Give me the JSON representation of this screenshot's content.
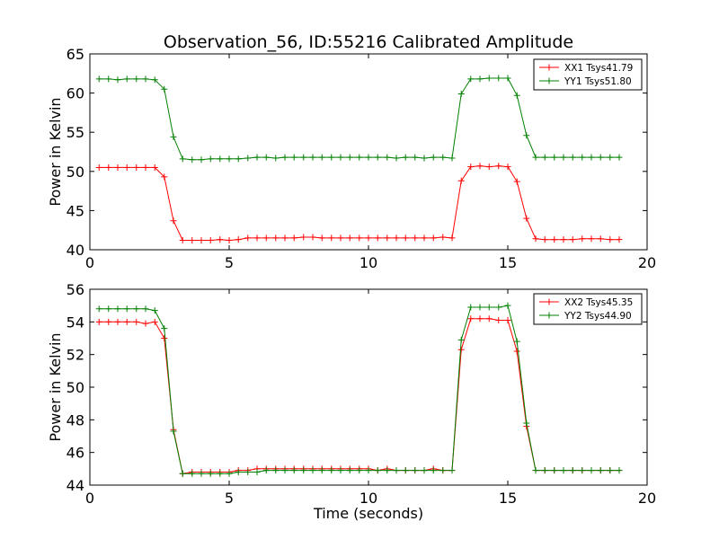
{
  "figure": {
    "title": "Observation_56, ID:55216 Calibrated Amplitude"
  },
  "chart_data": [
    {
      "type": "line",
      "title": "Observation_56, ID:55216 Calibrated Amplitude",
      "xlabel": "",
      "ylabel": "Power in Kelvin",
      "xlim": [
        0,
        20
      ],
      "ylim": [
        40,
        65
      ],
      "xticks": [
        "0",
        "5",
        "10",
        "15",
        "20"
      ],
      "yticks": [
        "40",
        "45",
        "50",
        "55",
        "60",
        "65"
      ],
      "grid": false,
      "legend_position": "top-right",
      "x": [
        0.33,
        0.67,
        1.0,
        1.33,
        1.67,
        2.0,
        2.33,
        2.67,
        3.0,
        3.33,
        3.67,
        4.0,
        4.33,
        4.67,
        5.0,
        5.33,
        5.67,
        6.0,
        6.33,
        6.67,
        7.0,
        7.33,
        7.67,
        8.0,
        8.33,
        8.67,
        9.0,
        9.33,
        9.67,
        10.0,
        10.33,
        10.67,
        11.0,
        11.33,
        11.67,
        12.0,
        12.33,
        12.67,
        13.0,
        13.33,
        13.67,
        14.0,
        14.33,
        14.67,
        15.0,
        15.33,
        15.67,
        16.0,
        16.33,
        16.67,
        17.0,
        17.33,
        17.67,
        18.0,
        18.33,
        18.67,
        19.0
      ],
      "series": [
        {
          "name": "XX1 Tsys41.79",
          "color": "#ff0000",
          "values": [
            50.5,
            50.5,
            50.5,
            50.5,
            50.5,
            50.5,
            50.5,
            49.3,
            43.7,
            41.2,
            41.2,
            41.2,
            41.2,
            41.3,
            41.2,
            41.3,
            41.5,
            41.5,
            41.5,
            41.5,
            41.5,
            41.5,
            41.6,
            41.6,
            41.5,
            41.5,
            41.5,
            41.5,
            41.5,
            41.5,
            41.5,
            41.5,
            41.5,
            41.5,
            41.5,
            41.5,
            41.5,
            41.6,
            41.5,
            48.8,
            50.6,
            50.7,
            50.6,
            50.7,
            50.6,
            48.7,
            44.0,
            41.4,
            41.3,
            41.3,
            41.3,
            41.3,
            41.4,
            41.4,
            41.4,
            41.3,
            41.3
          ]
        },
        {
          "name": "YY1 Tsys51.80",
          "color": "#008000",
          "values": [
            61.8,
            61.8,
            61.7,
            61.8,
            61.8,
            61.8,
            61.7,
            60.5,
            54.4,
            51.6,
            51.5,
            51.5,
            51.6,
            51.6,
            51.6,
            51.6,
            51.7,
            51.8,
            51.8,
            51.7,
            51.8,
            51.8,
            51.8,
            51.8,
            51.8,
            51.8,
            51.8,
            51.8,
            51.8,
            51.8,
            51.8,
            51.8,
            51.7,
            51.8,
            51.8,
            51.7,
            51.8,
            51.8,
            51.7,
            59.9,
            61.8,
            61.8,
            61.9,
            61.9,
            61.9,
            59.7,
            54.6,
            51.8,
            51.8,
            51.8,
            51.8,
            51.8,
            51.8,
            51.8,
            51.8,
            51.8,
            51.8
          ]
        }
      ]
    },
    {
      "type": "line",
      "title": "",
      "xlabel": "Time (seconds)",
      "ylabel": "Power in Kelvin",
      "xlim": [
        0,
        20
      ],
      "ylim": [
        44,
        56
      ],
      "xticks": [
        "0",
        "5",
        "10",
        "15",
        "20"
      ],
      "yticks": [
        "44",
        "46",
        "48",
        "50",
        "52",
        "54",
        "56"
      ],
      "grid": false,
      "legend_position": "top-right",
      "x": [
        0.33,
        0.67,
        1.0,
        1.33,
        1.67,
        2.0,
        2.33,
        2.67,
        3.0,
        3.33,
        3.67,
        4.0,
        4.33,
        4.67,
        5.0,
        5.33,
        5.67,
        6.0,
        6.33,
        6.67,
        7.0,
        7.33,
        7.67,
        8.0,
        8.33,
        8.67,
        9.0,
        9.33,
        9.67,
        10.0,
        10.33,
        10.67,
        11.0,
        11.33,
        11.67,
        12.0,
        12.33,
        12.67,
        13.0,
        13.33,
        13.67,
        14.0,
        14.33,
        14.67,
        15.0,
        15.33,
        15.67,
        16.0,
        16.33,
        16.67,
        17.0,
        17.33,
        17.67,
        18.0,
        18.33,
        18.67,
        19.0
      ],
      "series": [
        {
          "name": "XX2 Tsys45.35",
          "color": "#ff0000",
          "values": [
            54.0,
            54.0,
            54.0,
            54.0,
            54.0,
            53.9,
            54.0,
            53.0,
            47.4,
            44.7,
            44.8,
            44.8,
            44.8,
            44.8,
            44.8,
            44.9,
            44.9,
            45.0,
            45.0,
            45.0,
            45.0,
            45.0,
            45.0,
            45.0,
            45.0,
            45.0,
            45.0,
            45.0,
            45.0,
            45.0,
            44.9,
            45.0,
            44.9,
            44.9,
            44.9,
            44.9,
            45.0,
            44.9,
            44.9,
            52.3,
            54.2,
            54.2,
            54.2,
            54.1,
            54.1,
            52.2,
            47.6,
            44.9,
            44.9,
            44.9,
            44.9,
            44.9,
            44.9,
            44.9,
            44.9,
            44.9,
            44.9
          ]
        },
        {
          "name": "YY2 Tsys44.90",
          "color": "#008000",
          "values": [
            54.8,
            54.8,
            54.8,
            54.8,
            54.8,
            54.8,
            54.7,
            53.6,
            47.3,
            44.7,
            44.7,
            44.7,
            44.7,
            44.7,
            44.7,
            44.8,
            44.8,
            44.8,
            44.9,
            44.9,
            44.9,
            44.9,
            44.9,
            44.9,
            44.9,
            44.9,
            44.9,
            44.9,
            44.9,
            44.9,
            44.9,
            44.9,
            44.9,
            44.9,
            44.9,
            44.9,
            44.9,
            44.9,
            44.9,
            52.9,
            54.9,
            54.9,
            54.9,
            54.9,
            55.0,
            52.8,
            47.8,
            44.9,
            44.9,
            44.9,
            44.9,
            44.9,
            44.9,
            44.9,
            44.9,
            44.9,
            44.9
          ]
        }
      ]
    }
  ]
}
